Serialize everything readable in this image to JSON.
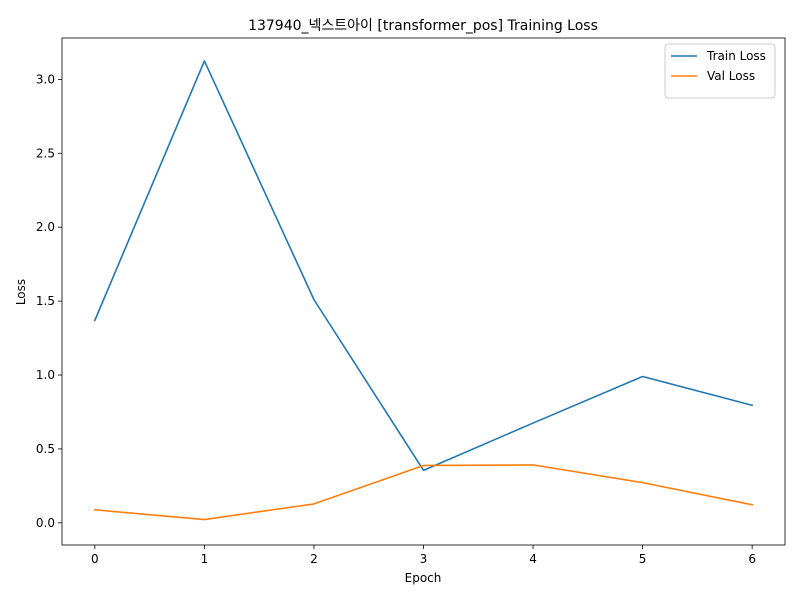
{
  "chart_data": {
    "type": "line",
    "title": "137940_넥스트아이 [transformer_pos] Training Loss",
    "xlabel": "Epoch",
    "ylabel": "Loss",
    "x": [
      0,
      1,
      2,
      3,
      4,
      5,
      6
    ],
    "xticks": [
      "0",
      "1",
      "2",
      "3",
      "4",
      "5",
      "6"
    ],
    "yticks": [
      "0.0",
      "0.5",
      "1.0",
      "1.5",
      "2.0",
      "2.5",
      "3.0"
    ],
    "xlim": [
      -0.3,
      6.3
    ],
    "ylim": [
      -0.15,
      3.28
    ],
    "grid": false,
    "legend_position": "upper right",
    "series": [
      {
        "name": "Train Loss",
        "color": "#1f77b4",
        "values": [
          1.37,
          3.125,
          1.51,
          0.355,
          0.675,
          0.99,
          0.795
        ]
      },
      {
        "name": "Val Loss",
        "color": "#ff7f0e",
        "values": [
          0.088,
          0.022,
          0.128,
          0.388,
          0.392,
          0.272,
          0.122
        ]
      }
    ]
  }
}
